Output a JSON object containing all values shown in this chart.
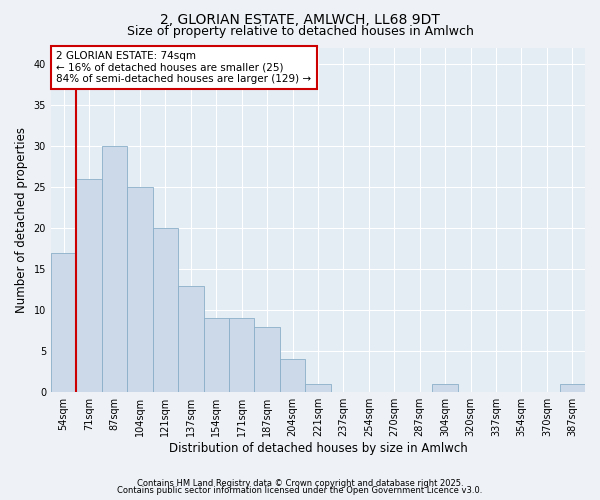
{
  "title1": "2, GLORIAN ESTATE, AMLWCH, LL68 9DT",
  "title2": "Size of property relative to detached houses in Amlwch",
  "xlabel": "Distribution of detached houses by size in Amlwch",
  "ylabel": "Number of detached properties",
  "categories": [
    "54sqm",
    "71sqm",
    "87sqm",
    "104sqm",
    "121sqm",
    "137sqm",
    "154sqm",
    "171sqm",
    "187sqm",
    "204sqm",
    "221sqm",
    "237sqm",
    "254sqm",
    "270sqm",
    "287sqm",
    "304sqm",
    "320sqm",
    "337sqm",
    "354sqm",
    "370sqm",
    "387sqm"
  ],
  "values": [
    17,
    26,
    30,
    25,
    20,
    13,
    9,
    9,
    8,
    4,
    1,
    0,
    0,
    0,
    0,
    1,
    0,
    0,
    0,
    0,
    1
  ],
  "bar_color": "#ccd9e8",
  "bar_edge_color": "#8aafc8",
  "vline_x": 0.5,
  "vline_color": "#cc0000",
  "annotation_text": "2 GLORIAN ESTATE: 74sqm\n← 16% of detached houses are smaller (25)\n84% of semi-detached houses are larger (129) →",
  "annotation_box_facecolor": "#ffffff",
  "annotation_box_edge": "#cc0000",
  "ylim": [
    0,
    42
  ],
  "yticks": [
    0,
    5,
    10,
    15,
    20,
    25,
    30,
    35,
    40
  ],
  "footer1": "Contains HM Land Registry data © Crown copyright and database right 2025.",
  "footer2": "Contains public sector information licensed under the Open Government Licence v3.0.",
  "bg_color": "#eef2f7",
  "plot_bg_color": "#e4ecf4",
  "grid_color": "#ffffff",
  "title_fontsize": 10,
  "subtitle_fontsize": 9,
  "tick_fontsize": 7,
  "label_fontsize": 8.5,
  "annotation_fontsize": 7.5,
  "footer_fontsize": 6
}
